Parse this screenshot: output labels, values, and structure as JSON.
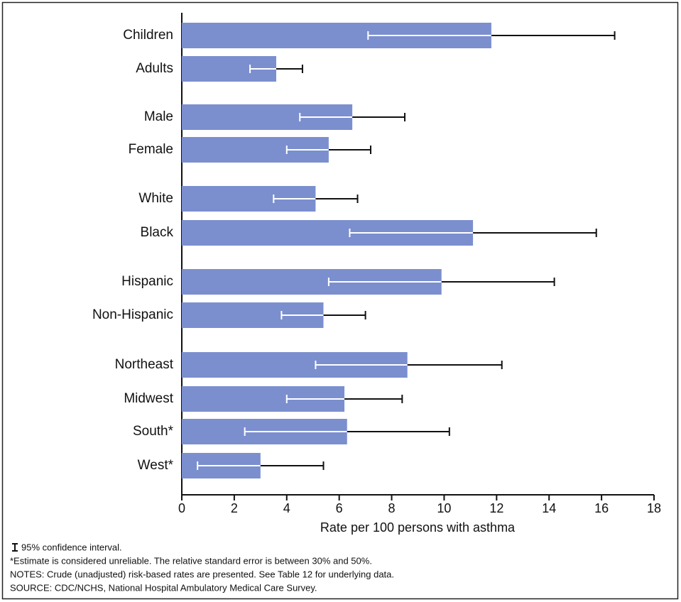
{
  "chart_data": {
    "type": "bar",
    "orientation": "horizontal",
    "categories": [
      "Children",
      "Adults",
      "Male",
      "Female",
      "White",
      "Black",
      "Hispanic",
      "Non-Hispanic",
      "Northeast",
      "Midwest",
      "South*",
      "West*"
    ],
    "values": [
      11.8,
      3.6,
      6.5,
      5.6,
      5.1,
      11.1,
      9.9,
      5.4,
      8.6,
      6.2,
      6.3,
      3.0
    ],
    "ci_low": [
      7.1,
      2.6,
      4.5,
      4.0,
      3.5,
      6.4,
      5.6,
      3.8,
      5.1,
      4.0,
      2.4,
      0.6
    ],
    "ci_high": [
      16.5,
      4.6,
      8.5,
      7.2,
      6.7,
      15.8,
      14.2,
      7.0,
      12.2,
      8.4,
      10.2,
      5.4
    ],
    "color": "#7b8fcf",
    "xlim": [
      0,
      18
    ],
    "xticks": [
      0,
      2,
      4,
      6,
      8,
      10,
      12,
      14,
      16,
      18
    ],
    "xlabel": "Rate per 100 persons with asthma",
    "legend_note": "95% confidence interval.",
    "footnotes": [
      "*Estimate is considered unreliable.  The relative standard error is between 30% and 50%.",
      "NOTES: Crude (unadjusted) risk-based rates are presented. See Table 12 for underlying data.",
      "SOURCE: CDC/NCHS, National Hospital Ambulatory Medical Care Survey."
    ]
  }
}
